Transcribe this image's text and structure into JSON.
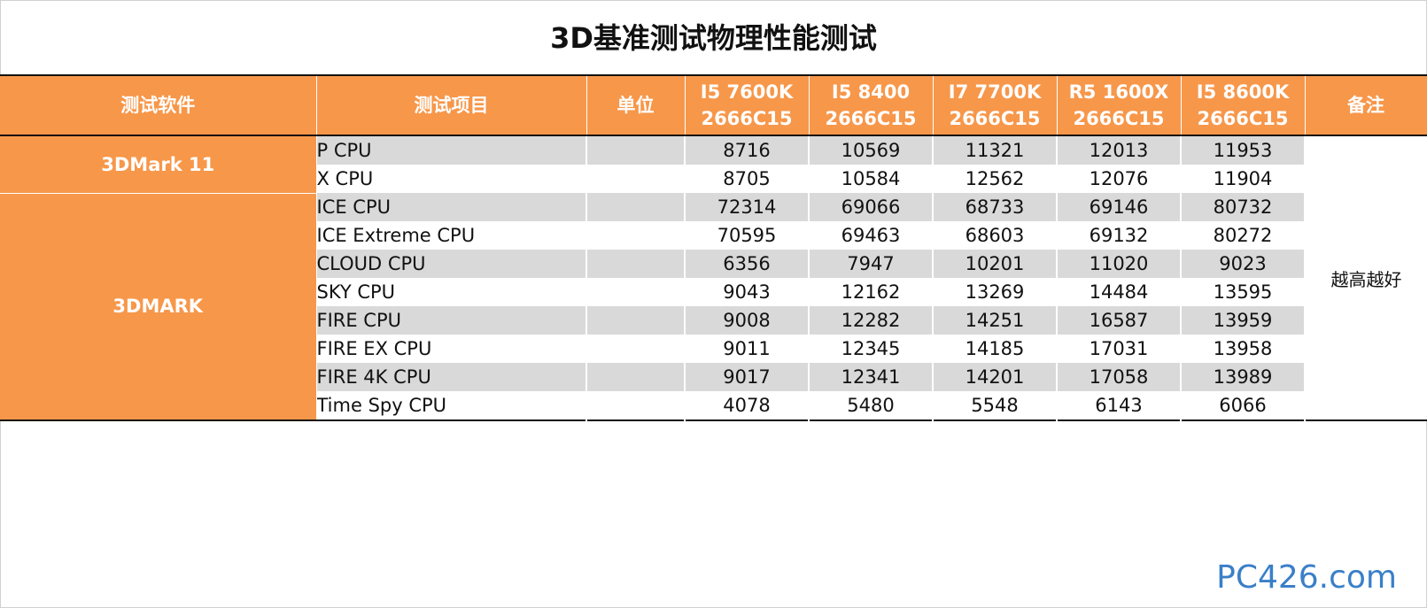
{
  "chart_data": {
    "type": "table",
    "title": "3D基准测试物理性能测试",
    "columns": [
      "测试软件",
      "测试项目",
      "单位",
      "I5 7600K\n2666C15",
      "I5 8400\n2666C15",
      "I7 7700K\n2666C15",
      "R5 1600X\n2666C15",
      "I5 8600K\n2666C15",
      "备注"
    ],
    "header": {
      "software": "测试软件",
      "item": "测试项目",
      "unit": "单位",
      "cpus": [
        {
          "name": "I5 7600K",
          "mem": "2666C15"
        },
        {
          "name": "I5 8400",
          "mem": "2666C15"
        },
        {
          "name": "I7 7700K",
          "mem": "2666C15"
        },
        {
          "name": "R5 1600X",
          "mem": "2666C15"
        },
        {
          "name": "I5 8600K",
          "mem": "2666C15"
        }
      ],
      "note": "备注"
    },
    "groups": [
      {
        "software": "3DMark 11",
        "rows": [
          {
            "item": "P CPU",
            "unit": "",
            "values": [
              8716,
              10569,
              11321,
              12013,
              11953
            ]
          },
          {
            "item": "X CPU",
            "unit": "",
            "values": [
              8705,
              10584,
              12562,
              12076,
              11904
            ]
          }
        ]
      },
      {
        "software": "3DMARK",
        "rows": [
          {
            "item": "ICE CPU",
            "unit": "",
            "values": [
              72314,
              69066,
              68733,
              69146,
              80732
            ]
          },
          {
            "item": "ICE Extreme CPU",
            "unit": "",
            "values": [
              70595,
              69463,
              68603,
              69132,
              80272
            ]
          },
          {
            "item": "CLOUD CPU",
            "unit": "",
            "values": [
              6356,
              7947,
              10201,
              11020,
              9023
            ]
          },
          {
            "item": "SKY CPU",
            "unit": "",
            "values": [
              9043,
              12162,
              13269,
              14484,
              13595
            ]
          },
          {
            "item": "FIRE CPU",
            "unit": "",
            "values": [
              9008,
              12282,
              14251,
              16587,
              13959
            ]
          },
          {
            "item": "FIRE EX CPU",
            "unit": "",
            "values": [
              9011,
              12345,
              14185,
              17031,
              13958
            ]
          },
          {
            "item": "FIRE 4K CPU",
            "unit": "",
            "values": [
              9017,
              12341,
              14201,
              17058,
              13989
            ]
          },
          {
            "item": "Time Spy CPU",
            "unit": "",
            "values": [
              4078,
              5480,
              5548,
              6143,
              6066
            ]
          }
        ]
      }
    ],
    "note_text": "越高越好"
  },
  "watermark": "PC426.com",
  "colors": {
    "header_bg": "#f7974a",
    "alt_row": "#d9d9d9",
    "watermark": "#3a7fc8"
  }
}
